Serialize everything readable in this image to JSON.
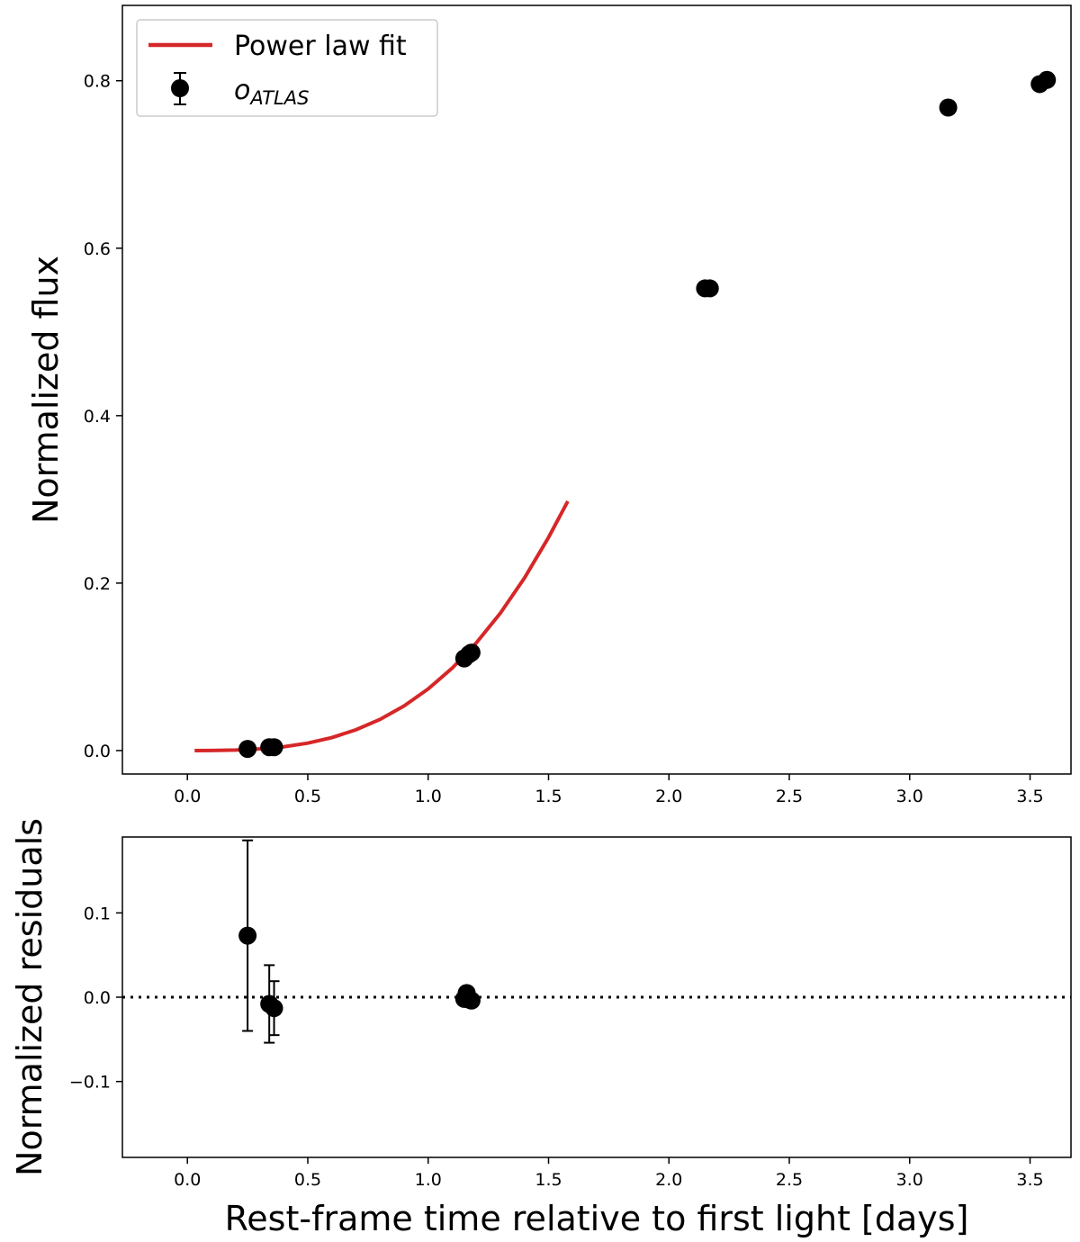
{
  "chart_data": [
    {
      "type": "scatter",
      "panel": "top",
      "ylabel": "Normalized flux",
      "xlabel": "",
      "xlim": [
        -0.27,
        3.67
      ],
      "ylim": [
        -0.028,
        0.89
      ],
      "x_ticks": [
        0.0,
        0.5,
        1.0,
        1.5,
        2.0,
        2.5,
        3.0,
        3.5
      ],
      "x_tick_labels": [
        "0.0",
        "0.5",
        "1.0",
        "1.5",
        "2.0",
        "2.5",
        "3.0",
        "3.5"
      ],
      "y_ticks": [
        0.0,
        0.2,
        0.4,
        0.6,
        0.8
      ],
      "y_tick_labels": [
        "0.0",
        "0.2",
        "0.4",
        "0.6",
        "0.8"
      ],
      "grid": false,
      "legend_position": "upper-left",
      "legend": [
        {
          "label": "Power law fit",
          "color": "#d62728",
          "marker": "line"
        },
        {
          "label_main": "o",
          "label_sub": "ATLAS",
          "color": "#000000",
          "marker": "errorbar-circle"
        }
      ],
      "series": [
        {
          "name": "Power law fit",
          "kind": "line",
          "color": "#d62728",
          "x": [
            0.03,
            0.1,
            0.2,
            0.3,
            0.4,
            0.5,
            0.6,
            0.7,
            0.8,
            0.9,
            1.0,
            1.1,
            1.2,
            1.3,
            1.4,
            1.5,
            1.58
          ],
          "y": [
            0.0,
            0.0001,
            0.0006,
            0.0019,
            0.0045,
            0.0089,
            0.0155,
            0.0248,
            0.0372,
            0.0533,
            0.0736,
            0.0985,
            0.1286,
            0.1642,
            0.2061,
            0.2546,
            0.2978
          ]
        },
        {
          "name": "o ATLAS",
          "kind": "scatter",
          "color": "#000000",
          "x": [
            0.25,
            0.34,
            0.36,
            1.15,
            1.17,
            1.18,
            2.15,
            2.17,
            3.16,
            3.54,
            3.57
          ],
          "y": [
            0.002,
            0.004,
            0.004,
            0.11,
            0.115,
            0.117,
            0.552,
            0.552,
            0.768,
            0.796,
            0.801
          ],
          "yerr": [
            0.002,
            0.002,
            0.002,
            0.002,
            0.002,
            0.002,
            0.002,
            0.002,
            0.002,
            0.002,
            0.002
          ]
        }
      ]
    },
    {
      "type": "scatter",
      "panel": "bottom",
      "ylabel": "Normalized residuals",
      "xlabel": "Rest-frame time relative to first light [days]",
      "xlim": [
        -0.27,
        3.67
      ],
      "ylim": [
        -0.19,
        0.19
      ],
      "x_ticks": [
        0.0,
        0.5,
        1.0,
        1.5,
        2.0,
        2.5,
        3.0,
        3.5
      ],
      "x_tick_labels": [
        "0.0",
        "0.5",
        "1.0",
        "1.5",
        "2.0",
        "2.5",
        "3.0",
        "3.5"
      ],
      "y_ticks": [
        -0.1,
        0.0,
        0.1
      ],
      "y_tick_labels": [
        "−0.1",
        "0.0",
        "0.1"
      ],
      "grid": false,
      "reference_line": {
        "y": 0.0,
        "style": "dotted",
        "color": "#000000"
      },
      "series": [
        {
          "name": "residuals",
          "kind": "scatter",
          "color": "#000000",
          "x": [
            0.25,
            0.34,
            0.36,
            1.15,
            1.16,
            1.17,
            1.18
          ],
          "y": [
            0.073,
            -0.008,
            -0.013,
            -0.002,
            0.005,
            -0.003,
            -0.004
          ],
          "yerr": [
            0.113,
            0.046,
            0.032,
            0.0,
            0.0,
            0.0,
            0.0
          ]
        }
      ]
    }
  ]
}
